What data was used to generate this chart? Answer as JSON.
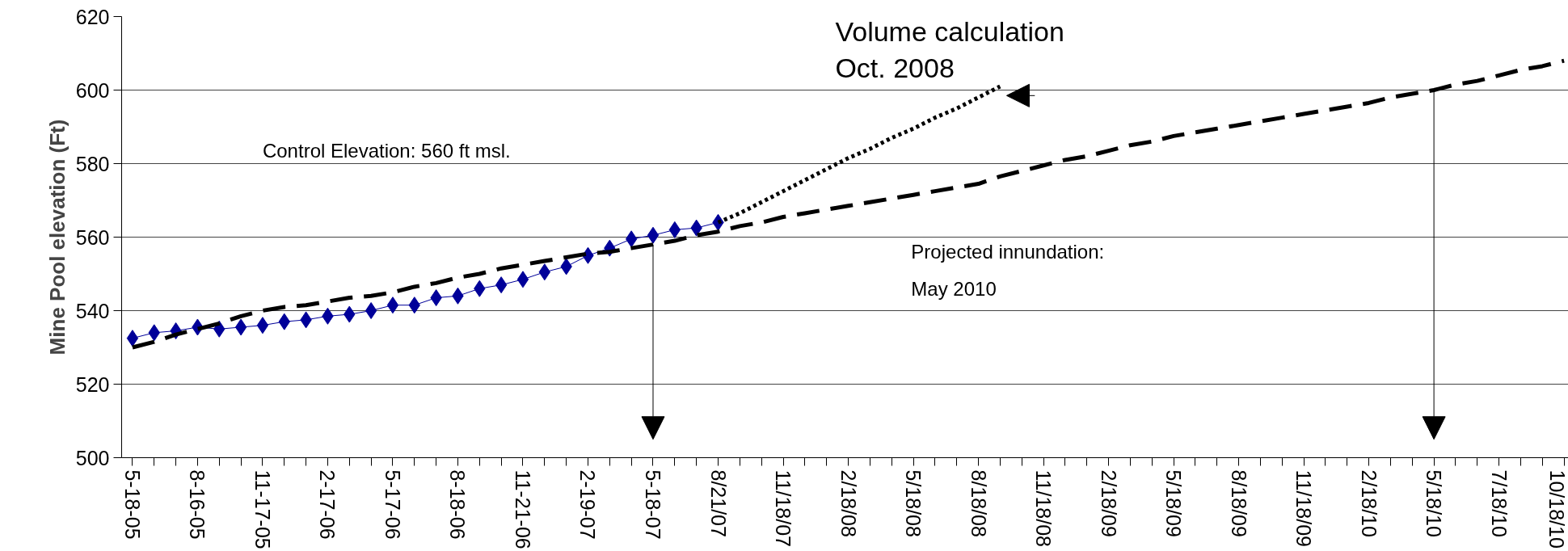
{
  "chart_data": {
    "type": "line",
    "ylabel": "Mine Pool elevation (Ft)",
    "categories": [
      "5-18-05",
      null,
      null,
      "8-16-05",
      null,
      null,
      "11-17-05",
      null,
      null,
      "2-17-06",
      null,
      null,
      "5-17-06",
      null,
      null,
      "8-18-06",
      null,
      null,
      "11-21-06",
      null,
      null,
      "2-19-07",
      null,
      null,
      "5-18-07",
      null,
      null,
      "8/21/07",
      null,
      null,
      "11/18/07",
      null,
      null,
      "2/18/08",
      null,
      null,
      "5/18/08",
      null,
      null,
      "8/18/08",
      null,
      null,
      "11/18/08",
      null,
      null,
      "2/18/09",
      null,
      null,
      "5/18/09",
      null,
      null,
      "8/18/09",
      null,
      null,
      "11/18/09",
      null,
      null,
      "2/18/10",
      null,
      null,
      "5/18/10",
      null,
      null,
      "7/18/10",
      null,
      null,
      "10/18/10"
    ],
    "ylim": [
      500,
      620
    ],
    "yticks": [
      500,
      520,
      540,
      560,
      580,
      600,
      620
    ],
    "grid": "y",
    "series": [
      {
        "color": "#000099",
        "marker": "diamond",
        "line_style": "solid",
        "values": [
          532.5,
          534,
          534.5,
          535.5,
          535,
          535.5,
          536,
          537,
          537.5,
          538.5,
          539,
          540,
          541.5,
          541.5,
          543.5,
          544,
          546,
          547,
          548.5,
          550.5,
          552,
          555,
          557,
          559.5,
          560.5,
          562,
          562.5,
          564,
          null,
          null,
          null,
          null,
          null,
          null,
          null,
          null,
          null,
          null,
          null,
          null,
          null,
          null,
          null,
          null,
          null,
          null,
          null,
          null,
          null,
          null,
          null,
          null,
          null,
          null,
          null,
          null,
          null,
          null,
          null,
          null,
          null,
          null,
          null,
          null,
          null,
          null,
          null
        ]
      },
      {
        "color": "#000000",
        "marker": "none",
        "line_style": "dashed",
        "values": [
          530,
          531.5,
          533.5,
          535,
          536.5,
          538.5,
          540,
          541,
          541.5,
          542.5,
          543.5,
          544,
          545,
          546.5,
          547.5,
          549,
          550,
          551.5,
          552.5,
          553.5,
          554.5,
          555.5,
          556,
          557,
          558,
          559,
          560.5,
          561.5,
          563,
          564,
          565.5,
          566.5,
          567.5,
          568.5,
          569.5,
          570.5,
          571.5,
          572.5,
          573.5,
          574.5,
          576.5,
          578,
          579.5,
          581,
          582,
          583.5,
          585,
          586,
          587.5,
          588.5,
          589.5,
          590.5,
          591.5,
          592.5,
          593.5,
          594.5,
          595.5,
          596.5,
          598,
          599,
          600,
          601.5,
          602.5,
          604,
          605.5,
          606.5,
          608
        ]
      },
      {
        "color": "#000000",
        "marker": "none",
        "line_style": "dotted",
        "values": [
          null,
          null,
          null,
          null,
          null,
          null,
          null,
          null,
          null,
          null,
          null,
          null,
          null,
          null,
          null,
          null,
          null,
          null,
          null,
          null,
          null,
          null,
          null,
          null,
          null,
          null,
          null,
          564,
          566.5,
          569.5,
          572.5,
          575.5,
          578.5,
          581.5,
          584,
          587,
          589.5,
          592.5,
          595,
          598,
          601,
          null,
          null,
          null,
          null,
          null,
          null,
          null,
          null,
          null,
          null,
          null,
          null,
          null,
          null,
          null,
          null,
          null,
          null,
          null,
          null,
          null,
          null,
          null,
          null,
          null,
          null
        ]
      }
    ],
    "annotations": [
      "Control Elevation: 560 ft msl.",
      "Volume calculation\nOct. 2008",
      "Projected innundation:\n May 2010"
    ]
  }
}
